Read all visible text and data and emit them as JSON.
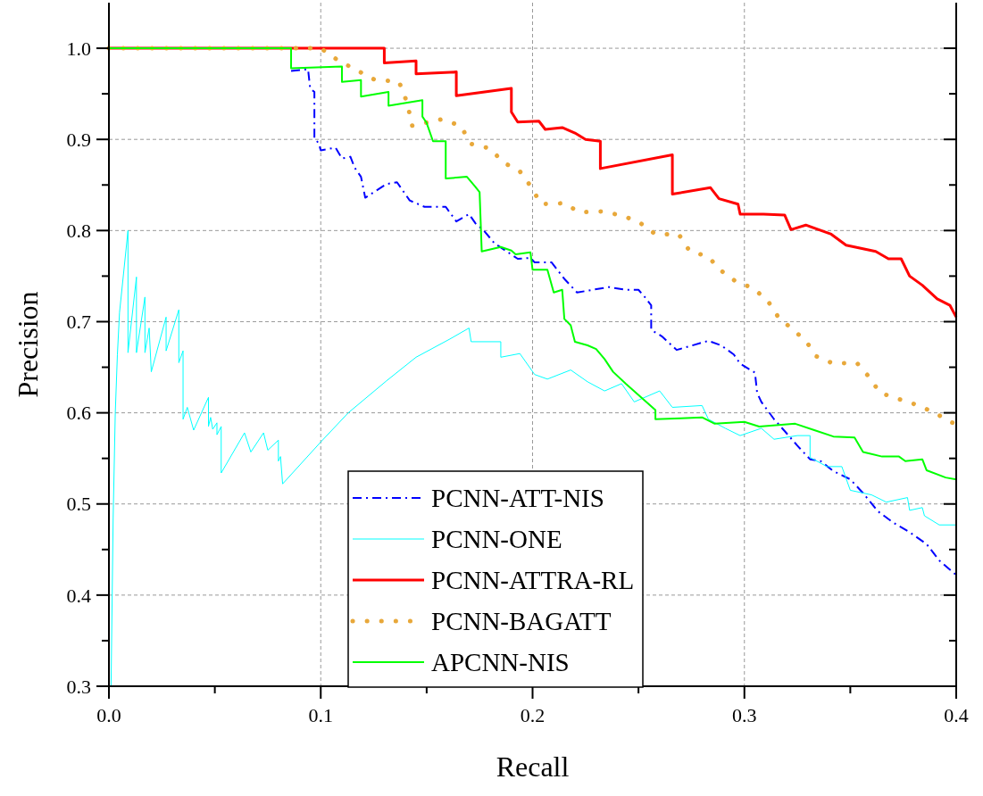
{
  "chart_data": {
    "type": "line",
    "xlabel": "Recall",
    "ylabel": "Precision",
    "xlim": [
      0,
      0.4
    ],
    "ylim": [
      0.3,
      1.05
    ],
    "xticks": [
      {
        "value": 0,
        "label": "0.0"
      },
      {
        "value": 0.05,
        "label": null
      },
      {
        "value": 0.1,
        "label": "0.1"
      },
      {
        "value": 0.15,
        "label": null
      },
      {
        "value": 0.2,
        "label": "0.2"
      },
      {
        "value": 0.25,
        "label": null
      },
      {
        "value": 0.3,
        "label": "0.3"
      },
      {
        "value": 0.35,
        "label": null
      },
      {
        "value": 0.4,
        "label": "0.4"
      }
    ],
    "yticks": [
      {
        "value": 0.3,
        "label": "0.3"
      },
      {
        "value": 0.35,
        "label": null
      },
      {
        "value": 0.4,
        "label": "0.4"
      },
      {
        "value": 0.45,
        "label": null
      },
      {
        "value": 0.5,
        "label": "0.5"
      },
      {
        "value": 0.55,
        "label": null
      },
      {
        "value": 0.6,
        "label": "0.6"
      },
      {
        "value": 0.65,
        "label": null
      },
      {
        "value": 0.7,
        "label": "0.7"
      },
      {
        "value": 0.75,
        "label": null
      },
      {
        "value": 0.8,
        "label": "0.8"
      },
      {
        "value": 0.85,
        "label": null
      },
      {
        "value": 0.9,
        "label": "0.9"
      },
      {
        "value": 0.95,
        "label": null
      },
      {
        "value": 1,
        "label": "1.0"
      }
    ],
    "grid": true,
    "legend": "bottom",
    "marker": "none",
    "series": [
      {
        "name": "PCNN-ATT-NIS",
        "color": "#0000ff",
        "line_style": "dashed",
        "x": [
          0.086,
          0.094,
          0.095,
          0.097,
          0.097,
          0.099,
          0.1,
          0.107,
          0.11,
          0.114,
          0.116,
          0.119,
          0.121,
          0.131,
          0.136,
          0.142,
          0.149,
          0.159,
          0.164,
          0.17,
          0.173,
          0.177,
          0.182,
          0.193,
          0.199,
          0.201,
          0.209,
          0.215,
          0.221,
          0.236,
          0.244,
          0.25,
          0.253,
          0.256,
          0.256,
          0.261,
          0.268,
          0.283,
          0.289,
          0.295,
          0.298,
          0.305,
          0.306,
          0.308,
          0.314,
          0.319,
          0.325,
          0.331,
          0.336,
          0.342,
          0.35,
          0.356,
          0.363,
          0.37,
          0.378,
          0.386,
          0.392,
          0.4
        ],
        "values": [
          0.975,
          0.977,
          0.956,
          0.952,
          0.901,
          0.896,
          0.888,
          0.891,
          0.879,
          0.881,
          0.869,
          0.859,
          0.836,
          0.851,
          0.853,
          0.833,
          0.826,
          0.826,
          0.81,
          0.818,
          0.808,
          0.8,
          0.786,
          0.769,
          0.77,
          0.765,
          0.765,
          0.747,
          0.732,
          0.738,
          0.735,
          0.735,
          0.727,
          0.718,
          0.691,
          0.684,
          0.669,
          0.679,
          0.674,
          0.664,
          0.654,
          0.644,
          0.622,
          0.612,
          0.593,
          0.58,
          0.564,
          0.549,
          0.547,
          0.536,
          0.527,
          0.512,
          0.492,
          0.48,
          0.469,
          0.456,
          0.438,
          0.422
        ]
      },
      {
        "name": "PCNN-ONE",
        "color": "#00ffff",
        "line_style": "solid",
        "x": [
          0.001,
          0.002,
          0.003,
          0.004,
          0.005,
          0.009,
          0.009,
          0.013,
          0.013,
          0.017,
          0.017,
          0.019,
          0.02,
          0.027,
          0.027,
          0.033,
          0.033,
          0.035,
          0.035,
          0.037,
          0.04,
          0.047,
          0.047,
          0.048,
          0.049,
          0.051,
          0.051,
          0.053,
          0.053,
          0.064,
          0.067,
          0.073,
          0.075,
          0.08,
          0.08,
          0.081,
          0.082,
          0.1,
          0.113,
          0.131,
          0.145,
          0.161,
          0.17,
          0.171,
          0.185,
          0.185,
          0.194,
          0.201,
          0.207,
          0.218,
          0.226,
          0.234,
          0.242,
          0.248,
          0.26,
          0.266,
          0.28,
          0.283,
          0.291,
          0.298,
          0.308,
          0.314,
          0.325,
          0.331,
          0.331,
          0.339,
          0.346,
          0.35,
          0.36,
          0.367,
          0.377,
          0.378,
          0.384,
          0.385,
          0.392,
          0.4
        ],
        "values": [
          0.3,
          0.485,
          0.6,
          0.664,
          0.71,
          0.8,
          0.666,
          0.749,
          0.666,
          0.727,
          0.666,
          0.693,
          0.645,
          0.705,
          0.668,
          0.713,
          0.655,
          0.668,
          0.593,
          0.606,
          0.581,
          0.617,
          0.585,
          0.595,
          0.582,
          0.589,
          0.576,
          0.585,
          0.534,
          0.578,
          0.557,
          0.578,
          0.559,
          0.57,
          0.547,
          0.552,
          0.522,
          0.568,
          0.6,
          0.635,
          0.661,
          0.681,
          0.693,
          0.678,
          0.678,
          0.661,
          0.665,
          0.642,
          0.637,
          0.647,
          0.634,
          0.624,
          0.632,
          0.612,
          0.624,
          0.606,
          0.608,
          0.593,
          0.583,
          0.575,
          0.583,
          0.571,
          0.575,
          0.575,
          0.551,
          0.541,
          0.541,
          0.515,
          0.51,
          0.502,
          0.507,
          0.493,
          0.496,
          0.487,
          0.477,
          0.477
        ]
      },
      {
        "name": "PCNN-ATTRA-RL",
        "color": "#ff0000",
        "line_style": "solid",
        "x": [
          0,
          0.13,
          0.13,
          0.145,
          0.145,
          0.164,
          0.164,
          0.19,
          0.19,
          0.193,
          0.203,
          0.206,
          0.214,
          0.22,
          0.225,
          0.232,
          0.232,
          0.266,
          0.266,
          0.284,
          0.288,
          0.297,
          0.298,
          0.309,
          0.319,
          0.322,
          0.329,
          0.341,
          0.348,
          0.362,
          0.368,
          0.374,
          0.378,
          0.384,
          0.391,
          0.397,
          0.4
        ],
        "values": [
          1.0,
          1.0,
          0.984,
          0.986,
          0.972,
          0.974,
          0.948,
          0.956,
          0.93,
          0.919,
          0.92,
          0.911,
          0.913,
          0.907,
          0.9,
          0.898,
          0.868,
          0.883,
          0.84,
          0.847,
          0.835,
          0.829,
          0.818,
          0.818,
          0.817,
          0.801,
          0.806,
          0.796,
          0.784,
          0.777,
          0.769,
          0.769,
          0.75,
          0.74,
          0.725,
          0.718,
          0.705
        ]
      },
      {
        "name": "PCNN-BAGATT",
        "color": "#e8a83a",
        "line_style": "dotted",
        "x": [
          0,
          0.1,
          0.108,
          0.125,
          0.137,
          0.141,
          0.143,
          0.157,
          0.166,
          0.171,
          0.18,
          0.186,
          0.194,
          0.199,
          0.204,
          0.215,
          0.222,
          0.233,
          0.243,
          0.251,
          0.258,
          0.269,
          0.274,
          0.283,
          0.289,
          0.296,
          0.304,
          0.311,
          0.316,
          0.322,
          0.329,
          0.334,
          0.342,
          0.353,
          0.359,
          0.364,
          0.373,
          0.381,
          0.39,
          0.397,
          0.4
        ],
        "values": [
          1.0,
          1.0,
          0.987,
          0.966,
          0.963,
          0.939,
          0.915,
          0.922,
          0.915,
          0.895,
          0.89,
          0.875,
          0.865,
          0.849,
          0.829,
          0.83,
          0.82,
          0.821,
          0.816,
          0.808,
          0.796,
          0.796,
          0.778,
          0.771,
          0.756,
          0.744,
          0.737,
          0.723,
          0.705,
          0.693,
          0.679,
          0.662,
          0.654,
          0.655,
          0.639,
          0.622,
          0.615,
          0.609,
          0.6,
          0.59,
          0.588
        ]
      },
      {
        "name": "APCNN-NIS",
        "color": "#00ff00",
        "line_style": "solid",
        "x": [
          0,
          0.086,
          0.086,
          0.11,
          0.11,
          0.119,
          0.119,
          0.132,
          0.132,
          0.148,
          0.148,
          0.15,
          0.153,
          0.159,
          0.159,
          0.169,
          0.173,
          0.175,
          0.176,
          0.185,
          0.19,
          0.192,
          0.199,
          0.2,
          0.207,
          0.21,
          0.214,
          0.215,
          0.218,
          0.22,
          0.226,
          0.23,
          0.234,
          0.238,
          0.244,
          0.258,
          0.258,
          0.27,
          0.28,
          0.286,
          0.3,
          0.307,
          0.324,
          0.333,
          0.342,
          0.352,
          0.356,
          0.365,
          0.373,
          0.376,
          0.384,
          0.386,
          0.395,
          0.4
        ],
        "values": [
          1.0,
          1.0,
          0.978,
          0.98,
          0.963,
          0.965,
          0.947,
          0.952,
          0.937,
          0.943,
          0.925,
          0.918,
          0.898,
          0.898,
          0.857,
          0.859,
          0.848,
          0.842,
          0.777,
          0.782,
          0.778,
          0.774,
          0.776,
          0.757,
          0.757,
          0.732,
          0.735,
          0.703,
          0.696,
          0.678,
          0.674,
          0.67,
          0.659,
          0.645,
          0.632,
          0.603,
          0.593,
          0.594,
          0.595,
          0.588,
          0.59,
          0.585,
          0.588,
          0.581,
          0.574,
          0.573,
          0.557,
          0.552,
          0.552,
          0.547,
          0.549,
          0.537,
          0.529,
          0.527
        ]
      }
    ]
  }
}
